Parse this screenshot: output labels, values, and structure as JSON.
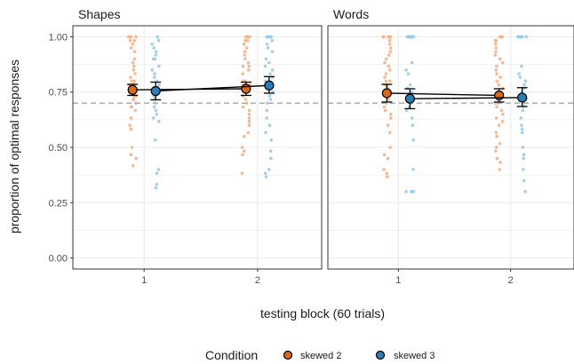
{
  "chart_data": {
    "type": "scatter",
    "xlabel": "testing block (60 trials)",
    "ylabel": "proportion of optimal responses",
    "x_ticks": [
      "1",
      "2"
    ],
    "y_ticks": [
      "0.00",
      "0.25",
      "0.50",
      "0.75",
      "1.00"
    ],
    "ylim": [
      -0.05,
      1.05
    ],
    "reference_line": 0.7,
    "grid": true,
    "legend": {
      "title": "Condition",
      "placement": "bottom",
      "entries": [
        {
          "label": "skewed 2",
          "color": "#d86a1e"
        },
        {
          "label": "skewed 3",
          "color": "#2b7db5"
        }
      ]
    },
    "colors": {
      "skewed2_point": "#f2b38a",
      "skewed3_point": "#9ccbe8",
      "skewed2_mean": "#d86a1e",
      "skewed3_mean": "#2b7db5",
      "reference_line": "#b3b3b3",
      "grid": "#ebebeb"
    },
    "panels": [
      {
        "strip": "Shapes",
        "means": [
          {
            "name": "skewed 2",
            "points": [
              {
                "block": 1,
                "mean": 0.76,
                "lo": 0.735,
                "hi": 0.785
              },
              {
                "block": 2,
                "mean": 0.765,
                "lo": 0.735,
                "hi": 0.795
              }
            ]
          },
          {
            "name": "skewed 3",
            "points": [
              {
                "block": 1,
                "mean": 0.755,
                "lo": 0.715,
                "hi": 0.795
              },
              {
                "block": 2,
                "mean": 0.78,
                "lo": 0.745,
                "hi": 0.82
              }
            ]
          }
        ],
        "individual": [
          {
            "name": "skewed 2",
            "block": 1,
            "values": [
              1.0,
              1.0,
              1.0,
              0.983,
              0.983,
              0.967,
              0.95,
              0.933,
              0.9,
              0.883,
              0.867,
              0.85,
              0.833,
              0.817,
              0.8,
              0.8,
              0.8,
              0.783,
              0.783,
              0.783,
              0.767,
              0.767,
              0.75,
              0.75,
              0.733,
              0.733,
              0.717,
              0.717,
              0.7,
              0.7,
              0.683,
              0.683,
              0.667,
              0.633,
              0.6,
              0.583,
              0.5,
              0.467,
              0.45,
              0.417
            ]
          },
          {
            "name": "skewed 3",
            "block": 1,
            "values": [
              1.0,
              0.983,
              0.967,
              0.95,
              0.933,
              0.917,
              0.9,
              0.9,
              0.867,
              0.85,
              0.833,
              0.817,
              0.8,
              0.783,
              0.767,
              0.75,
              0.75,
              0.733,
              0.717,
              0.7,
              0.683,
              0.667,
              0.65,
              0.633,
              0.617,
              0.533,
              0.4,
              0.383,
              0.333,
              0.317
            ]
          },
          {
            "name": "skewed 2",
            "block": 2,
            "values": [
              1.0,
              1.0,
              1.0,
              0.983,
              0.983,
              0.967,
              0.95,
              0.933,
              0.917,
              0.9,
              0.883,
              0.867,
              0.867,
              0.85,
              0.833,
              0.8,
              0.8,
              0.783,
              0.783,
              0.767,
              0.75,
              0.733,
              0.717,
              0.7,
              0.683,
              0.667,
              0.65,
              0.633,
              0.617,
              0.6,
              0.567,
              0.55,
              0.5,
              0.483,
              0.467,
              0.383
            ]
          },
          {
            "name": "skewed 3",
            "block": 2,
            "values": [
              1.0,
              1.0,
              1.0,
              1.0,
              1.0,
              1.0,
              0.983,
              0.967,
              0.95,
              0.933,
              0.9,
              0.883,
              0.867,
              0.85,
              0.833,
              0.817,
              0.8,
              0.783,
              0.767,
              0.75,
              0.733,
              0.717,
              0.7,
              0.667,
              0.633,
              0.6,
              0.567,
              0.533,
              0.483,
              0.45,
              0.4,
              0.383,
              0.367
            ]
          }
        ]
      },
      {
        "strip": "Words",
        "means": [
          {
            "name": "skewed 2",
            "points": [
              {
                "block": 1,
                "mean": 0.745,
                "lo": 0.705,
                "hi": 0.785
              },
              {
                "block": 2,
                "mean": 0.735,
                "lo": 0.705,
                "hi": 0.765
              }
            ]
          },
          {
            "name": "skewed 3",
            "points": [
              {
                "block": 1,
                "mean": 0.72,
                "lo": 0.675,
                "hi": 0.765
              },
              {
                "block": 2,
                "mean": 0.725,
                "lo": 0.685,
                "hi": 0.77
              }
            ]
          }
        ],
        "individual": [
          {
            "name": "skewed 2",
            "block": 1,
            "values": [
              1.0,
              1.0,
              1.0,
              1.0,
              1.0,
              0.983,
              0.967,
              0.95,
              0.933,
              0.917,
              0.9,
              0.883,
              0.867,
              0.85,
              0.833,
              0.817,
              0.8,
              0.8,
              0.783,
              0.783,
              0.767,
              0.75,
              0.733,
              0.717,
              0.7,
              0.683,
              0.667,
              0.65,
              0.633,
              0.6,
              0.567,
              0.5,
              0.467,
              0.45,
              0.4,
              0.383,
              0.367
            ]
          },
          {
            "name": "skewed 3",
            "block": 1,
            "values": [
              1.0,
              1.0,
              1.0,
              1.0,
              1.0,
              1.0,
              1.0,
              1.0,
              1.0,
              1.0,
              1.0,
              1.0,
              0.883,
              0.85,
              0.833,
              0.783,
              0.767,
              0.75,
              0.733,
              0.717,
              0.7,
              0.683,
              0.667,
              0.633,
              0.6,
              0.533,
              0.4,
              0.3,
              0.3,
              0.3,
              0.3
            ]
          },
          {
            "name": "skewed 2",
            "block": 2,
            "values": [
              1.0,
              1.0,
              1.0,
              0.983,
              0.983,
              0.967,
              0.95,
              0.933,
              0.917,
              0.9,
              0.883,
              0.867,
              0.85,
              0.833,
              0.817,
              0.8,
              0.783,
              0.767,
              0.75,
              0.733,
              0.733,
              0.717,
              0.7,
              0.7,
              0.683,
              0.667,
              0.65,
              0.633,
              0.617,
              0.6,
              0.567,
              0.55,
              0.517,
              0.5,
              0.483,
              0.45,
              0.433,
              0.4
            ]
          },
          {
            "name": "skewed 3",
            "block": 2,
            "values": [
              1.0,
              1.0,
              1.0,
              1.0,
              1.0,
              1.0,
              1.0,
              0.867,
              0.833,
              0.817,
              0.8,
              0.783,
              0.767,
              0.75,
              0.733,
              0.717,
              0.7,
              0.683,
              0.667,
              0.633,
              0.6,
              0.583,
              0.567,
              0.5,
              0.467,
              0.45,
              0.4,
              0.35,
              0.3
            ]
          }
        ]
      }
    ]
  }
}
